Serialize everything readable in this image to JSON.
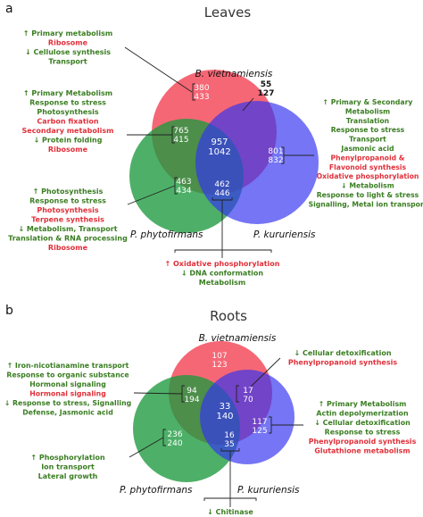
{
  "panels": {
    "a": {
      "letter": "a",
      "title": "Leaves",
      "species": {
        "b": "B. vietnamiensis",
        "p": "P. phytofirmans",
        "k": "P. kururiensis"
      },
      "counts": {
        "b_only": [
          "380",
          "433"
        ],
        "bp": [
          "765",
          "415"
        ],
        "center": [
          "957",
          "1042"
        ],
        "k_only": [
          "801",
          "832"
        ],
        "p_only": [
          "463",
          "434"
        ],
        "pk": [
          "462",
          "446"
        ],
        "bk": [
          "55",
          "127"
        ]
      },
      "notes": {
        "top": [
          {
            "text": "↑ Primary metabolism",
            "color": "#3a7d22"
          },
          {
            "text": "Ribosome",
            "color": "#e0303a"
          },
          {
            "text": "↓ Cellulose synthesis",
            "color": "#3a7d22"
          },
          {
            "text": "Transport",
            "color": "#3a7d22"
          }
        ],
        "mid": [
          {
            "text": "↑ Primary Metabolism",
            "color": "#3a7d22"
          },
          {
            "text": "Response to stress",
            "color": "#3a7d22"
          },
          {
            "text": "Photosynthesis",
            "color": "#3a7d22"
          },
          {
            "text": "Carbon fixation",
            "color": "#e0303a"
          },
          {
            "text": "Secondary metabolism",
            "color": "#e0303a"
          },
          {
            "text": "↓ Protein folding",
            "color": "#3a7d22"
          },
          {
            "text": "Ribosome",
            "color": "#e0303a"
          }
        ],
        "low": [
          {
            "text": "↑ Photosynthesis",
            "color": "#3a7d22"
          },
          {
            "text": "Response to stress",
            "color": "#3a7d22"
          },
          {
            "text": "Photosynthesis",
            "color": "#e0303a"
          },
          {
            "text": "Terpene synthesis",
            "color": "#e0303a"
          },
          {
            "text": "↓ Metabolism, Transport",
            "color": "#3a7d22"
          },
          {
            "text": "Translation & RNA processing",
            "color": "#3a7d22"
          },
          {
            "text": "Ribosome",
            "color": "#e0303a"
          }
        ],
        "right": [
          {
            "text": "↑ Primary & Secondary",
            "color": "#3a7d22"
          },
          {
            "text": "Metabolism",
            "color": "#3a7d22"
          },
          {
            "text": "Translation",
            "color": "#3a7d22"
          },
          {
            "text": "Response to stress",
            "color": "#3a7d22"
          },
          {
            "text": "Transport",
            "color": "#3a7d22"
          },
          {
            "text": "Jasmonic acid",
            "color": "#3a7d22"
          },
          {
            "text": "Phenylpropanoid &",
            "color": "#e0303a"
          },
          {
            "text": "Flavonoid synthesis",
            "color": "#e0303a"
          },
          {
            "text": "Oxidative phosphorylation",
            "color": "#e0303a"
          },
          {
            "text": "↓ Metabolism",
            "color": "#3a7d22"
          },
          {
            "text": "Response to light & stress",
            "color": "#3a7d22"
          },
          {
            "text": "Signalling, Metal ion transport",
            "color": "#3a7d22"
          }
        ],
        "bottom": [
          {
            "text": "↑ Oxidative phosphorylation",
            "color": "#e0303a"
          },
          {
            "text": "↓ DNA conformation",
            "color": "#3a7d22"
          },
          {
            "text": "Metabolism",
            "color": "#3a7d22"
          }
        ]
      }
    },
    "b": {
      "letter": "b",
      "title": "Roots",
      "species": {
        "b": "B. vietnamiensis",
        "p": "P. phytofirmans",
        "k": "P. kururiensis"
      },
      "counts": {
        "b_only": [
          "107",
          "123"
        ],
        "bp": [
          "94",
          "194"
        ],
        "bk": [
          "17",
          "70"
        ],
        "center": [
          "33",
          "140"
        ],
        "k_only": [
          "117",
          "125"
        ],
        "p_only": [
          "236",
          "240"
        ],
        "pk": [
          "16",
          "35"
        ]
      },
      "notes": {
        "left": [
          {
            "text": "↑ Iron-nicotianamine transport",
            "color": "#3a7d22"
          },
          {
            "text": "Response to organic substance",
            "color": "#3a7d22"
          },
          {
            "text": "Hormonal signaling",
            "color": "#3a7d22"
          },
          {
            "text": "Hormonal signaling",
            "color": "#e0303a"
          },
          {
            "text": "↓ Response to stress, Signalling",
            "color": "#3a7d22"
          },
          {
            "text": "Defense, Jasmonic acid",
            "color": "#3a7d22"
          }
        ],
        "left_low": [
          {
            "text": "↑ Phosphorylation",
            "color": "#3a7d22"
          },
          {
            "text": "Ion transport",
            "color": "#3a7d22"
          },
          {
            "text": "Lateral growth",
            "color": "#3a7d22"
          }
        ],
        "right_top": [
          {
            "text": "↓ Cellular detoxification",
            "color": "#3a7d22"
          },
          {
            "text": "Phenylpropanoid synthesis",
            "color": "#e0303a"
          }
        ],
        "right": [
          {
            "text": "↑ Primary Metabolism",
            "color": "#3a7d22"
          },
          {
            "text": "Actin depolymerization",
            "color": "#3a7d22"
          },
          {
            "text": "↓ Cellular detoxification",
            "color": "#3a7d22"
          },
          {
            "text": "Response to stress",
            "color": "#3a7d22"
          },
          {
            "text": "Phenylpropanoid synthesis",
            "color": "#e0303a"
          },
          {
            "text": "Glutathione metabolism",
            "color": "#e0303a"
          }
        ],
        "bottom": [
          {
            "text": "↓ Chitinase",
            "color": "#3a7d22"
          }
        ]
      }
    }
  }
}
